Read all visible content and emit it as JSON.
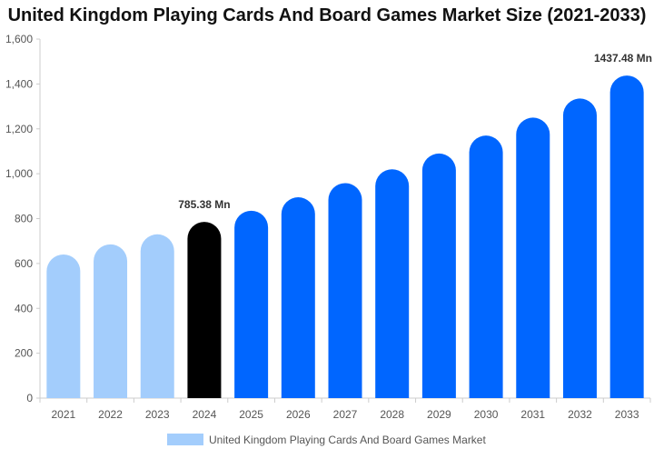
{
  "chart_data": {
    "type": "bar",
    "title": "United Kingdom Playing Cards And Board Games Market Size (2021-2033)",
    "xlabel": "",
    "ylabel": "",
    "categories": [
      "2021",
      "2022",
      "2023",
      "2024",
      "2025",
      "2026",
      "2027",
      "2028",
      "2029",
      "2030",
      "2031",
      "2032",
      "2033"
    ],
    "series": [
      {
        "name": "United Kingdom Playing Cards And Board Games Market",
        "values": [
          640,
          685,
          730,
          785.38,
          835,
          895,
          958,
          1020,
          1090,
          1170,
          1250,
          1335,
          1437.48
        ]
      }
    ],
    "ylim": [
      0,
      1600
    ],
    "yticks": [
      0,
      200,
      400,
      600,
      800,
      1000,
      1200,
      1400,
      1600
    ],
    "ytick_labels": [
      "0",
      "200",
      "400",
      "600",
      "800",
      "1,000",
      "1,200",
      "1,400",
      "1,600"
    ],
    "bar_colors": {
      "historical": "#a3cdfc",
      "base_year": "#000000",
      "forecast": "#0066ff"
    },
    "bar_color_by_index": [
      "historical",
      "historical",
      "historical",
      "base_year",
      "forecast",
      "forecast",
      "forecast",
      "forecast",
      "forecast",
      "forecast",
      "forecast",
      "forecast",
      "forecast"
    ],
    "annotations": [
      {
        "index": 3,
        "text": "785.38 Mn"
      },
      {
        "index": 12,
        "text": "1437.48 Mn"
      }
    ],
    "grid": false,
    "legend": {
      "placement": "bottom",
      "swatch_color": "#a3cdfc"
    }
  }
}
